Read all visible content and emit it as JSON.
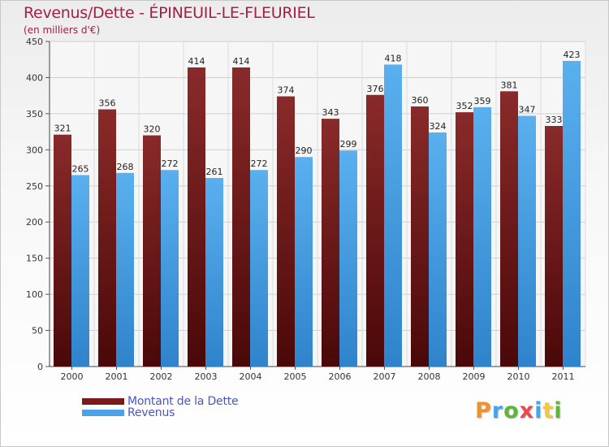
{
  "header": {
    "title": "Revenus/Dette - ÉPINEUIL-LE-FLEURIEL",
    "subtitle": "(en milliers d'€)"
  },
  "legend": [
    {
      "label": "Montant de la Dette",
      "color": "#7a1a1a"
    },
    {
      "label": "Revenus",
      "color": "#4aa3e6"
    }
  ],
  "logo": {
    "text": "Proxiti",
    "letters": [
      {
        "ch": "P",
        "color": "#f0922b"
      },
      {
        "ch": "r",
        "color": "#4aa3e6"
      },
      {
        "ch": "o",
        "color": "#5fb53c"
      },
      {
        "ch": "x",
        "color": "#e8484e"
      },
      {
        "ch": "i",
        "color": "#4aa3e6"
      },
      {
        "ch": "t",
        "color": "#f3c93a"
      },
      {
        "ch": "i",
        "color": "#5fb53c"
      }
    ]
  },
  "chart_data": {
    "type": "bar",
    "title": "Revenus/Dette - ÉPINEUIL-LE-FLEURIEL",
    "subtitle": "(en milliers d'€)",
    "categories": [
      "2000",
      "2001",
      "2002",
      "2003",
      "2004",
      "2005",
      "2006",
      "2007",
      "2008",
      "2009",
      "2010",
      "2011"
    ],
    "series": [
      {
        "name": "Montant de la Dette",
        "color": "#7a1a1a",
        "values": [
          321,
          356,
          320,
          414,
          414,
          374,
          343,
          376,
          360,
          352,
          381,
          333
        ]
      },
      {
        "name": "Revenus",
        "color": "#4aa3e6",
        "values": [
          265,
          268,
          272,
          261,
          272,
          290,
          299,
          418,
          324,
          359,
          347,
          423
        ]
      }
    ],
    "ylim": [
      0,
      450
    ],
    "yticks": [
      0,
      50,
      100,
      150,
      200,
      250,
      300,
      350,
      400,
      450
    ],
    "grid": true,
    "legend_position": "bottom-left"
  }
}
